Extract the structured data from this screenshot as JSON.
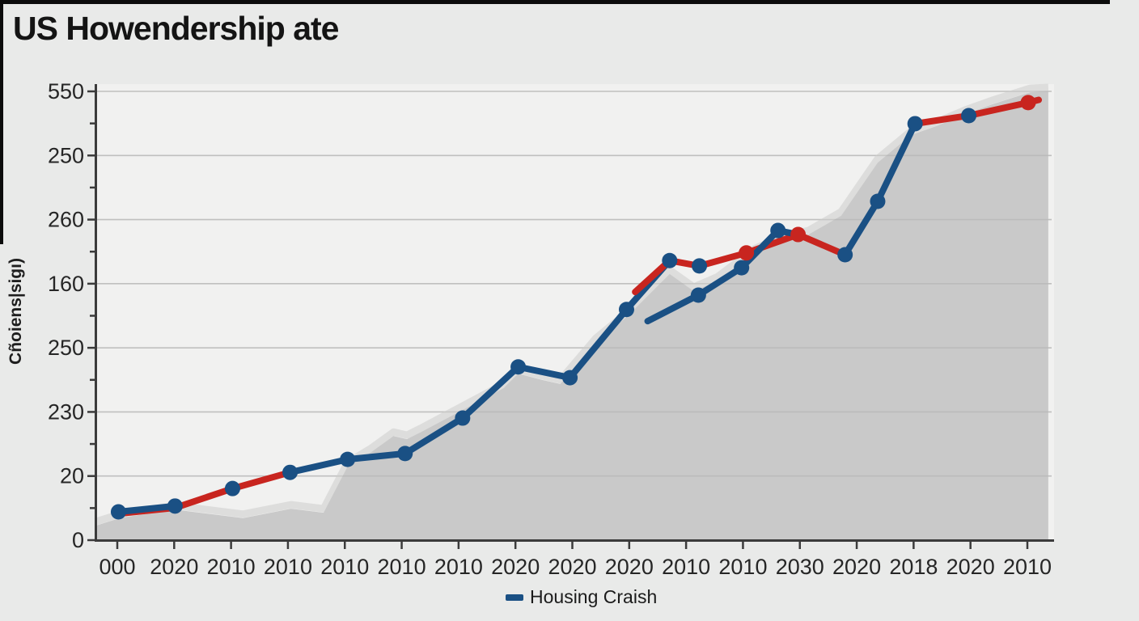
{
  "figure": {
    "title": "US Howendership ate",
    "background": "#e9eae9"
  },
  "chart_data": {
    "type": "line",
    "title": "US Howendership ate",
    "xlabel": "",
    "ylabel": "Cñoiens|sigı)",
    "x_tick_labels": [
      "000",
      "2020",
      "2010",
      "2010",
      "2010",
      "2010",
      "2010",
      "2020",
      "2020",
      "2020",
      "2010",
      "2010",
      "2030",
      "2020",
      "2018",
      "2020",
      "2010"
    ],
    "y_tick_labels_top_to_bottom": [
      "550",
      "250",
      "260",
      "160",
      "250",
      "230",
      "20",
      "0"
    ],
    "grid": "horizontal",
    "legend": {
      "position": "bottom-center",
      "entries": [
        {
          "label": "Housing Craish",
          "color_key": "blue"
        }
      ]
    },
    "units_note": "point coordinates are percent of plot area; x: 0 = left axis, 100 = right end; y: 0 = bottom axis, 100 = top gridline",
    "area_series": {
      "name": "gray-background-area",
      "points": [
        [
          0,
          3.2
        ],
        [
          2.7,
          5.0
        ],
        [
          8.3,
          6.8
        ],
        [
          15.4,
          4.9
        ],
        [
          20.4,
          7.0
        ],
        [
          23.8,
          6.1
        ],
        [
          26.3,
          16.4
        ],
        [
          28.7,
          19.5
        ],
        [
          31.1,
          23.2
        ],
        [
          32.5,
          22.5
        ],
        [
          33.9,
          24.0
        ],
        [
          38.3,
          29.0
        ],
        [
          42.6,
          33.9
        ],
        [
          44.1,
          37.1
        ],
        [
          46.6,
          35.7
        ],
        [
          48.5,
          34.8
        ],
        [
          52.2,
          44.1
        ],
        [
          55.4,
          49.7
        ],
        [
          59.9,
          59.3
        ],
        [
          62.4,
          55.5
        ],
        [
          64.9,
          57.8
        ],
        [
          68.8,
          64.1
        ],
        [
          71.6,
          66.7
        ],
        [
          74.4,
          68.1
        ],
        [
          77.8,
          72.3
        ],
        [
          81.6,
          84.1
        ],
        [
          85.1,
          90.3
        ],
        [
          87.9,
          92.4
        ],
        [
          90.9,
          95.1
        ],
        [
          93.8,
          97.3
        ],
        [
          97.5,
          99.8
        ],
        [
          99.4,
          100.0
        ],
        [
          99.4,
          0
        ],
        [
          0,
          0
        ]
      ]
    },
    "line_segments": [
      {
        "color_key": "red",
        "points": [
          [
            2.4,
            5.9
          ],
          [
            8.3,
            7.2
          ],
          [
            14.3,
            11.5
          ],
          [
            20.3,
            15.1
          ]
        ]
      },
      {
        "color_key": "blue",
        "points": [
          [
            2.4,
            6.3
          ],
          [
            8.3,
            7.6
          ]
        ]
      },
      {
        "color_key": "blue",
        "points": [
          [
            20.3,
            15.1
          ],
          [
            26.3,
            18.0
          ],
          [
            32.3,
            19.3
          ],
          [
            38.3,
            27.2
          ],
          [
            44.1,
            38.6
          ],
          [
            49.5,
            36.2
          ],
          [
            55.4,
            51.4
          ],
          [
            59.9,
            62.3
          ]
        ]
      },
      {
        "color_key": "red",
        "points": [
          [
            56.3,
            55.3
          ],
          [
            59.9,
            62.3
          ],
          [
            63.0,
            61.1
          ],
          [
            67.9,
            64.0
          ],
          [
            73.3,
            68.1
          ],
          [
            78.2,
            63.6
          ]
        ]
      },
      {
        "color_key": "blue",
        "points": [
          [
            57.6,
            48.8
          ],
          [
            62.9,
            54.6
          ],
          [
            67.4,
            60.7
          ],
          [
            71.2,
            69.0
          ],
          [
            73.5,
            68.0
          ]
        ]
      },
      {
        "color_key": "blue",
        "points": [
          [
            78.2,
            63.6
          ],
          [
            81.6,
            75.5
          ],
          [
            85.5,
            92.8
          ]
        ]
      },
      {
        "color_key": "red",
        "points": [
          [
            85.5,
            92.8
          ],
          [
            91.1,
            94.6
          ],
          [
            97.3,
            97.5
          ],
          [
            98.4,
            98.1
          ]
        ]
      }
    ],
    "markers": {
      "blue": [
        [
          2.4,
          6.3
        ],
        [
          8.3,
          7.6
        ],
        [
          14.3,
          11.5
        ],
        [
          20.3,
          15.1
        ],
        [
          26.3,
          18.0
        ],
        [
          32.3,
          19.3
        ],
        [
          38.3,
          27.2
        ],
        [
          44.1,
          38.6
        ],
        [
          49.5,
          36.2
        ],
        [
          55.4,
          51.4
        ],
        [
          59.9,
          62.3
        ],
        [
          63.0,
          61.1
        ],
        [
          62.9,
          54.6
        ],
        [
          67.4,
          60.7
        ],
        [
          71.2,
          69.0
        ],
        [
          78.2,
          63.6
        ],
        [
          81.6,
          75.5
        ],
        [
          85.5,
          92.8
        ],
        [
          91.1,
          94.6
        ]
      ],
      "red": [
        [
          67.9,
          64.0
        ],
        [
          73.3,
          68.1
        ],
        [
          97.3,
          97.5
        ]
      ]
    },
    "colors": {
      "blue": "#1a5084",
      "red": "#c8251f",
      "area": "#c9c9c9",
      "area_shadow": "#d8d8d7",
      "grid": "#cfcfce",
      "axis": "#3b3b3b",
      "plot_bg": "#f1f1f0",
      "page_bg": "#e9eae9",
      "title_text": "#141414",
      "tick_text": "#262626"
    }
  }
}
